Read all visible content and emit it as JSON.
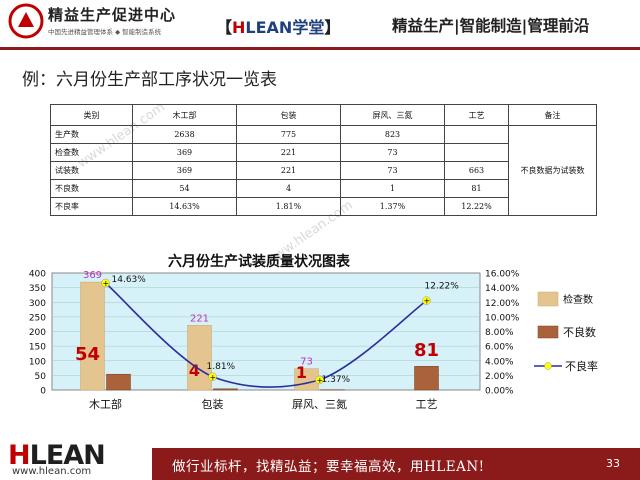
{
  "header": {
    "brand": "精益生产促进中心",
    "brand_sub": "中国先进精益管理体系 ◆ 智能制造系统",
    "center_open": "【",
    "center_h": "H",
    "center_rest": "LEAN",
    "center_cn": "学堂",
    "center_close": "】",
    "right": "精益生产|智能制造|管理前沿"
  },
  "page_title": "例：六月份生产部工序状况一览表",
  "watermark": "www.hlean.com",
  "table": {
    "headers": [
      "类别",
      "木工部",
      "包装",
      "屏风、三氮",
      "工艺",
      "备注"
    ],
    "rows": [
      [
        "生产数",
        "2638",
        "775",
        "823",
        ""
      ],
      [
        "检查数",
        "369",
        "221",
        "73",
        ""
      ],
      [
        "试装数",
        "369",
        "221",
        "73",
        "663"
      ],
      [
        "不良数",
        "54",
        "4",
        "1",
        "81"
      ],
      [
        "不良率",
        "14.63%",
        "1.81%",
        "1.37%",
        "12.22%"
      ]
    ],
    "note": "不良数据为试装数"
  },
  "chart_data": {
    "type": "bar",
    "title": "六月份生产试装质量状况图表",
    "categories": [
      "木工部",
      "包装",
      "屏风、三氮",
      "工艺"
    ],
    "series": [
      {
        "name": "检查数",
        "kind": "bar",
        "axis": "left",
        "values": [
          369,
          221,
          73,
          null
        ],
        "color": "#e4c590"
      },
      {
        "name": "不良数",
        "kind": "bar",
        "axis": "left",
        "values": [
          54,
          4,
          1,
          81
        ],
        "color": "#a9623a"
      },
      {
        "name": "不良率",
        "kind": "line",
        "axis": "right",
        "values": [
          14.63,
          1.81,
          1.37,
          12.22
        ],
        "color": "#2b2f9e"
      }
    ],
    "bar_labels": [
      "369",
      "221",
      "73",
      ""
    ],
    "defect_labels": [
      "54",
      "4",
      "1",
      "81"
    ],
    "rate_labels": [
      "14.63%",
      "1.81%",
      "1.37%",
      "12.22%"
    ],
    "ylim_left": [
      0,
      400
    ],
    "yticks_left": [
      "0",
      "50",
      "100",
      "150",
      "200",
      "250",
      "300",
      "350",
      "400"
    ],
    "ylim_right": [
      0,
      16
    ],
    "yticks_right": [
      "0.00%",
      "2.00%",
      "4.00%",
      "6.00%",
      "8.00%",
      "10.00%",
      "12.00%",
      "14.00%",
      "16.00%"
    ],
    "legend_position": "right",
    "plot_background": "#d6f1f7",
    "grid": true
  },
  "footer": {
    "logo_h": "H",
    "logo_rest": "LEAN",
    "url": "www.hlean.com",
    "slogan": "做行业标杆，找精弘益；要幸福高效，用HLEAN!",
    "page": "33"
  },
  "colors": {
    "accent": "#8b1a1a",
    "brand_red": "#c00000",
    "brand_blue": "#1f3f7f"
  }
}
